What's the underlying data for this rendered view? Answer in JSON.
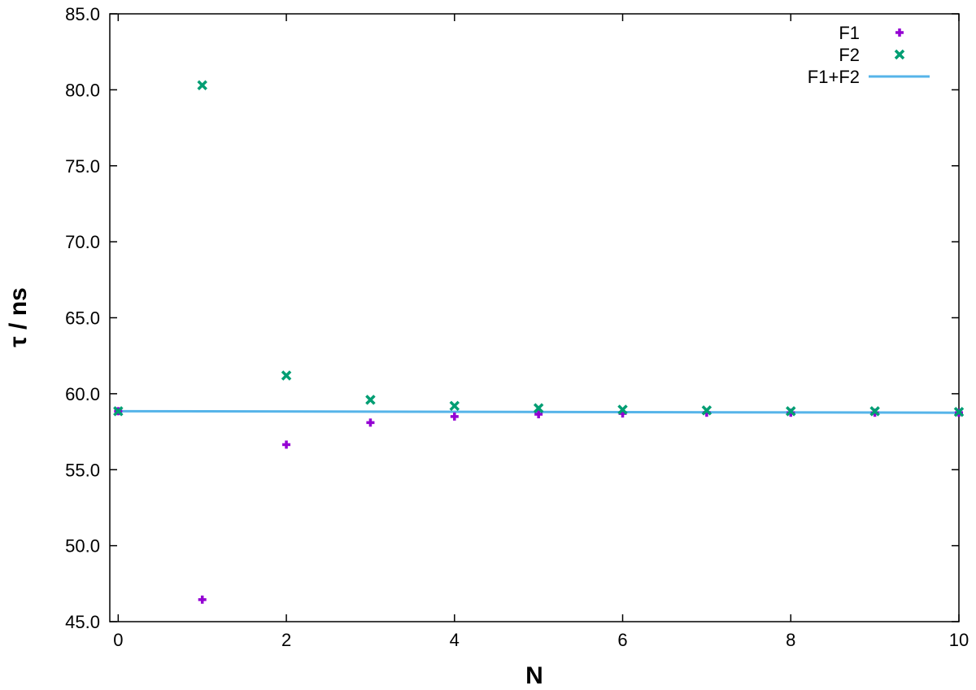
{
  "chart_data": {
    "type": "scatter",
    "title": "",
    "xlabel": "N",
    "ylabel": "τ / ns",
    "xlim": [
      -0.1,
      10
    ],
    "ylim": [
      45.0,
      85.0
    ],
    "x_ticks": [
      0,
      2,
      4,
      6,
      8,
      10
    ],
    "y_ticks": [
      45.0,
      50.0,
      55.0,
      60.0,
      65.0,
      70.0,
      75.0,
      80.0,
      85.0
    ],
    "y_tick_labels": [
      "45.0",
      "50.0",
      "55.0",
      "60.0",
      "65.0",
      "70.0",
      "75.0",
      "80.0",
      "85.0"
    ],
    "grid": false,
    "legend_position": "top-right",
    "series": [
      {
        "name": "F1",
        "kind": "points",
        "marker": "plus",
        "color": "#9400d3",
        "x": [
          0,
          1,
          2,
          3,
          4,
          5,
          6,
          7,
          8,
          9,
          10
        ],
        "y": [
          58.85,
          46.45,
          56.65,
          58.1,
          58.5,
          58.65,
          58.7,
          58.75,
          58.75,
          58.75,
          58.75
        ]
      },
      {
        "name": "F2",
        "kind": "points",
        "marker": "cross",
        "color": "#009e73",
        "x": [
          0,
          1,
          2,
          3,
          4,
          5,
          6,
          7,
          8,
          9,
          10
        ],
        "y": [
          58.85,
          80.3,
          61.2,
          59.6,
          59.2,
          59.05,
          58.95,
          58.9,
          58.85,
          58.85,
          58.8
        ]
      },
      {
        "name": "F1+F2",
        "kind": "line",
        "color": "#56b4e9",
        "x": [
          0,
          10
        ],
        "y": [
          58.85,
          58.75
        ]
      }
    ]
  }
}
